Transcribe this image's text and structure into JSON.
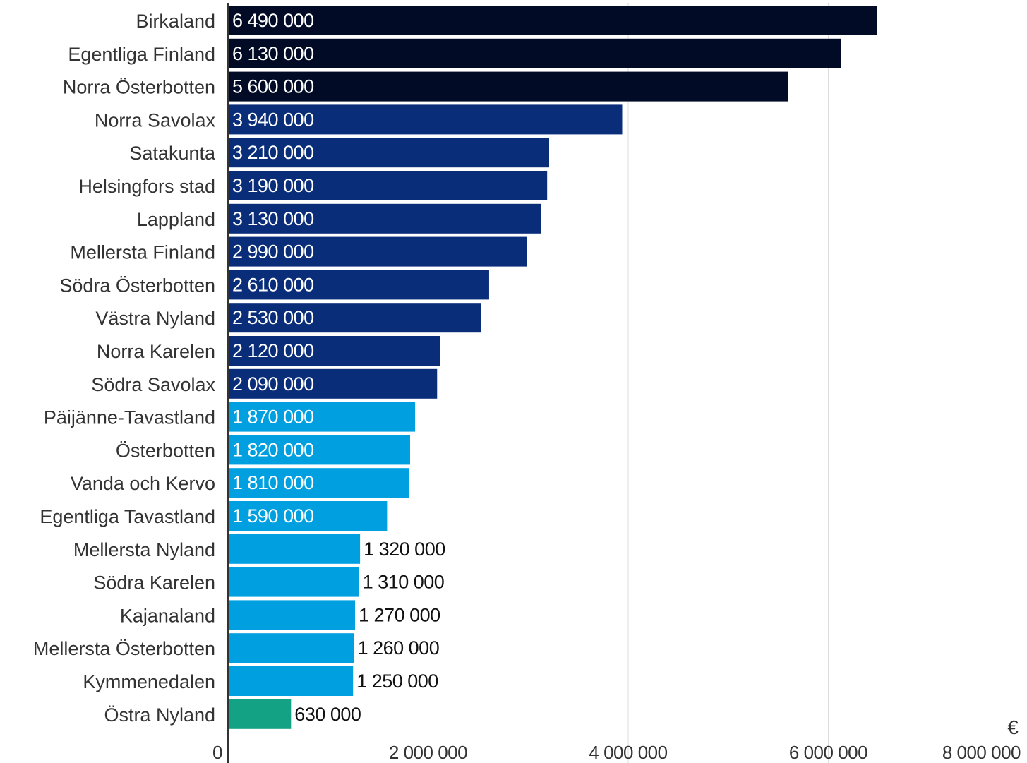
{
  "chart_data": {
    "type": "bar",
    "orientation": "horizontal",
    "categories": [
      "Birkaland",
      "Egentliga Finland",
      "Norra Österbotten",
      "Norra Savolax",
      "Satakunta",
      "Helsingfors stad",
      "Lappland",
      "Mellersta Finland",
      "Södra Österbotten",
      "Västra Nyland",
      "Norra Karelen",
      "Södra Savolax",
      "Päijänne-Tavastland",
      "Österbotten",
      "Vanda och Kervo",
      "Egentliga Tavastland",
      "Mellersta Nyland",
      "Södra Karelen",
      "Kajanaland",
      "Mellersta Österbotten",
      "Kymmenedalen",
      "Östra Nyland"
    ],
    "values": [
      6490000,
      6130000,
      5600000,
      3940000,
      3210000,
      3190000,
      3130000,
      2990000,
      2610000,
      2530000,
      2120000,
      2090000,
      1870000,
      1820000,
      1810000,
      1590000,
      1320000,
      1310000,
      1270000,
      1260000,
      1250000,
      630000
    ],
    "value_labels": [
      "6 490 000",
      "6 130 000",
      "5 600 000",
      "3 940 000",
      "3 210 000",
      "3 190 000",
      "3 130 000",
      "2 990 000",
      "2 610 000",
      "2 530 000",
      "2 120 000",
      "2 090 000",
      "1 870 000",
      "1 820 000",
      "1 810 000",
      "1 590 000",
      "1 320 000",
      "1 310 000",
      "1 270 000",
      "1 260 000",
      "1 250 000",
      "630 000"
    ],
    "bar_colors": [
      "#020b26",
      "#020b26",
      "#020b26",
      "#0a2d7a",
      "#0a2d7a",
      "#0a2d7a",
      "#0a2d7a",
      "#0a2d7a",
      "#0a2d7a",
      "#0a2d7a",
      "#0a2d7a",
      "#0a2d7a",
      "#009fe0",
      "#009fe0",
      "#009fe0",
      "#009fe0",
      "#009fe0",
      "#009fe0",
      "#009fe0",
      "#009fe0",
      "#009fe0",
      "#13a384"
    ],
    "xlim": [
      0,
      8000000
    ],
    "x_ticks": [
      0,
      2000000,
      4000000,
      6000000,
      8000000
    ],
    "x_tick_labels": [
      "0",
      "2 000 000",
      "4 000 000",
      "6 000 000",
      "8 000 000"
    ],
    "unit": "€",
    "grid": true
  }
}
